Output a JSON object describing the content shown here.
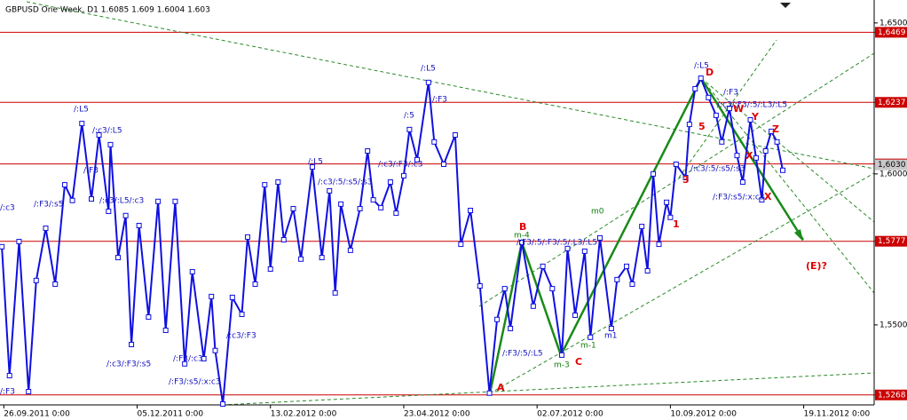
{
  "chart_data": {
    "type": "line",
    "title": "GBPUSD One Week, D1  1.6085  1.609  1.6004  1.603",
    "x": [
      -1,
      3,
      8,
      13,
      17,
      22,
      27,
      32,
      36,
      41,
      46,
      50,
      55,
      56,
      60,
      64,
      67,
      71,
      76,
      81,
      85,
      90,
      95,
      99,
      105,
      109,
      111,
      115,
      120,
      125,
      128,
      132,
      137,
      140,
      144,
      147,
      152,
      156,
      162,
      167,
      171,
      174,
      177,
      182,
      187,
      191,
      194,
      198,
      203,
      206,
      210,
      213,
      217,
      223,
      226,
      231,
      237,
      240,
      245,
      250,
      255,
      259,
      263,
      266,
      272,
      278,
      283,
      288,
      293,
      296,
      300,
      305,
      308,
      313,
      319,
      322,
      327,
      330,
      335,
      338,
      341,
      344,
      348,
      350,
      353,
      358,
      360,
      363,
      366,
      370,
      374,
      377,
      381,
      385,
      388,
      392,
      395,
      398,
      400,
      403,
      406,
      409
    ],
    "series": [
      {
        "name": "GBPUSD",
        "color": "#1010e0",
        "values": [
          1.5759,
          1.5332,
          1.5776,
          1.5279,
          1.5647,
          1.582,
          1.5635,
          1.5964,
          1.5912,
          1.6167,
          1.5917,
          1.6129,
          1.5876,
          1.6097,
          1.5723,
          1.5862,
          1.5435,
          1.5829,
          1.5526,
          1.5909,
          1.5482,
          1.5909,
          1.5371,
          1.5676,
          1.5388,
          1.5594,
          1.5415,
          1.5238,
          1.5591,
          1.5535,
          1.5791,
          1.5635,
          1.5964,
          1.5685,
          1.5973,
          1.5782,
          1.5885,
          1.5718,
          1.6023,
          1.5723,
          1.5944,
          1.5606,
          1.59,
          1.5747,
          1.5885,
          1.6076,
          1.5914,
          1.5888,
          1.5973,
          1.587,
          1.5994,
          1.6147,
          1.6047,
          1.6303,
          1.6106,
          1.6032,
          1.6129,
          1.5767,
          1.5879,
          1.5629,
          1.5274,
          1.5518,
          1.562,
          1.5488,
          1.5773,
          1.5562,
          1.5694,
          1.562,
          1.54,
          1.5753,
          1.5532,
          1.5744,
          1.5459,
          1.5788,
          1.5488,
          1.565,
          1.5694,
          1.5635,
          1.5826,
          1.5679,
          1.6,
          1.5767,
          1.5906,
          1.5856,
          1.6032,
          1.5988,
          1.6164,
          1.6282,
          1.6317,
          1.6253,
          1.6194,
          1.6106,
          1.6217,
          1.6061,
          1.5973,
          1.6179,
          1.6053,
          1.5914,
          1.6076,
          1.6141,
          1.6106,
          1.6012
        ]
      }
    ],
    "xlim": [
      -2,
      457
    ],
    "xticks": [
      {
        "value": 0,
        "label": "26.09.2011 0:00"
      },
      {
        "value": 70,
        "label": "05.12.2011 0:00"
      },
      {
        "value": 140,
        "label": "13.02.2012 0:00"
      },
      {
        "value": 210,
        "label": "23.04.2012 0:00"
      },
      {
        "value": 280,
        "label": "02.07.2012 0:00"
      },
      {
        "value": 350,
        "label": "10.09.2012 0:00"
      },
      {
        "value": 420,
        "label": "19.11.2012 0:00"
      }
    ],
    "ylim": [
      1.5235,
      1.6576
    ],
    "yticks": [
      {
        "value": 1.55,
        "label": "1,5500"
      },
      {
        "value": 1.6,
        "label": "1,6000"
      },
      {
        "value": 1.65,
        "label": "1,6500"
      }
    ],
    "levels": [
      {
        "value": 1.6469,
        "label": "1,6469"
      },
      {
        "value": 1.6237,
        "label": "1,6237"
      },
      {
        "value": 1.6033,
        "label": "1,6033"
      },
      {
        "value": 1.5777,
        "label": "1,5777"
      },
      {
        "value": 1.5268,
        "label": "1,5268"
      }
    ],
    "level_color": "#cc0000",
    "current_price": {
      "value": 1.603,
      "label": "1,6030"
    },
    "annotations": [
      "/:L5",
      "D",
      "/:L5",
      "W",
      "Y",
      "Z",
      "X",
      "X",
      "(E)?",
      "1",
      "3",
      "5",
      "A",
      "B",
      "C",
      "m-4",
      "m-3",
      "m-1",
      "m0",
      "m1",
      "/:L5",
      "/:c3/:L5",
      "/:F3",
      "/:F3/:s5",
      "/:c3/:L5/:c3",
      "/:F3/:c3",
      "/:F3/:s5/:x:c3",
      "/:c3/:F3/:s5",
      "/:c3/:F3",
      "/:L5",
      "/:c3/:F3/:c3",
      "/:c3/:5/:s5/:s3",
      "/:F3/:5/:L5",
      "/:F3/:5/:F3/:5/:L3/:L5",
      "/:c3/:5/:s5/:s3",
      "/:F3/:s5/:x:c3",
      "/:c3/:F3/:5/:L3/:L5",
      "/:F3",
      "/:F3",
      "/:5",
      "/:F3",
      "/:c3"
    ]
  }
}
